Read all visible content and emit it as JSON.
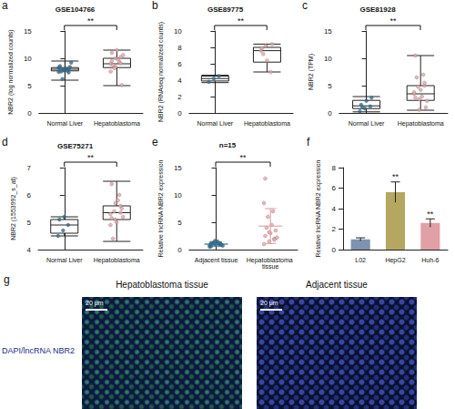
{
  "chart_data": [
    {
      "panel": "a",
      "type": "boxplot",
      "title": "GSE104766",
      "y_label": "NBR2 (log normalized counts)",
      "categories": [
        "Normal Liver",
        "Hepatoblastoma"
      ],
      "colors": [
        "#2e6e8e",
        "#e3a5aa"
      ],
      "box": [
        [
          6.0,
          7.7,
          8.0,
          8.3,
          9.5
        ],
        [
          5.0,
          8.3,
          9.0,
          10.0,
          11.5
        ]
      ],
      "points": [
        [
          7.5,
          7.8,
          8.0,
          8.2,
          7.9,
          8.4,
          7.6,
          8.1,
          9.2,
          6.2,
          7.7,
          8.3,
          8.0,
          7.4,
          8.6
        ],
        [
          9.0,
          8.4,
          10.2,
          9.5,
          11.5,
          5.1,
          8.8,
          9.8,
          10.6,
          8.2,
          9.3,
          7.6,
          10.0,
          9.1,
          11.0
        ]
      ],
      "ylim": [
        0,
        15
      ],
      "yticks": [
        0,
        5,
        10,
        15
      ],
      "annotation": "**",
      "grid": false
    },
    {
      "panel": "b",
      "type": "boxplot",
      "title": "GSE89775",
      "y_label": "NBR2 (RNAseq normalized counts)",
      "categories": [
        "Normal Liver",
        "Hepatoblastoma"
      ],
      "colors": [
        "#2e6e8e",
        "#e3a5aa"
      ],
      "box": [
        [
          3.7,
          3.9,
          4.2,
          4.5,
          4.6
        ],
        [
          5.0,
          6.2,
          7.6,
          8.0,
          8.4
        ]
      ],
      "points": [
        [
          3.8,
          4.2,
          4.5
        ],
        [
          7.6,
          8.2,
          5.0,
          7.9,
          6.4,
          8.4,
          7.2
        ]
      ],
      "ylim": [
        0,
        10
      ],
      "yticks": [
        0,
        2,
        4,
        6,
        8,
        10
      ],
      "annotation": "**",
      "grid": false
    },
    {
      "panel": "c",
      "type": "boxplot",
      "title": "GSE81928",
      "y_label": "NBR2 (TPM)",
      "categories": [
        "Normal Liver",
        "Hepatoblastoma"
      ],
      "colors": [
        "#2e6e8e",
        "#e3a5aa"
      ],
      "box": [
        [
          0.2,
          0.8,
          1.3,
          2.3,
          3.0
        ],
        [
          0.5,
          2.3,
          3.5,
          5.0,
          10.5
        ]
      ],
      "points": [
        [
          0.3,
          0.8,
          1.2,
          1.5,
          2.2,
          2.8,
          1.0
        ],
        [
          3.5,
          2.5,
          5.0,
          10.5,
          4.2,
          1.0,
          6.5,
          3.0,
          2.2,
          4.8,
          7.0,
          3.8,
          0.6,
          5.5,
          2.8
        ]
      ],
      "ylim": [
        0,
        15
      ],
      "yticks": [
        0,
        5,
        10,
        15
      ],
      "annotation": "**",
      "grid": false
    },
    {
      "panel": "d",
      "type": "boxplot",
      "title": "GSE75271",
      "y_label": "NBR2 (1553992_s_at)",
      "categories": [
        "Normal Liver",
        "Hepatoblastoma"
      ],
      "colors": [
        "#2e6e8e",
        "#e3a5aa"
      ],
      "box": [
        [
          4.5,
          4.6,
          4.9,
          5.1,
          5.2
        ],
        [
          4.3,
          5.1,
          5.35,
          5.6,
          6.5
        ]
      ],
      "points": [
        [
          4.5,
          4.7,
          4.9,
          5.1,
          5.2
        ],
        [
          5.3,
          5.1,
          5.6,
          6.4,
          5.0,
          5.5,
          4.4,
          5.8,
          5.2,
          5.4,
          6.0,
          4.9,
          5.7,
          5.35,
          5.15
        ]
      ],
      "ylim": [
        4,
        7
      ],
      "yticks": [
        4,
        5,
        6,
        7
      ],
      "annotation": "**",
      "grid": false
    },
    {
      "panel": "e",
      "type": "scatter",
      "title": "n=15",
      "y_label": "Relative lncRNA NBR2 expression",
      "categories": [
        "Adjacent tissue",
        "Hepatoblastoma tissue"
      ],
      "colors": [
        "#2e6e8e",
        "#e3a5aa"
      ],
      "points": [
        [
          0.8,
          1.0,
          1.2,
          0.6,
          1.4,
          0.9,
          1.1,
          1.5,
          0.7,
          1.3,
          1.0,
          0.5,
          1.6,
          0.9,
          1.2
        ],
        [
          1.0,
          1.5,
          2.0,
          2.5,
          3.0,
          3.5,
          4.0,
          4.5,
          2.2,
          6.0,
          7.0,
          8.5,
          3.2,
          1.8,
          13.0
        ]
      ],
      "mean": [
        1.0,
        4.3
      ],
      "sd": [
        0.35,
        3.2
      ],
      "ylim": [
        0,
        15
      ],
      "yticks": [
        0,
        5,
        10,
        15
      ],
      "annotation": "**",
      "grid": false
    },
    {
      "panel": "f",
      "type": "bar",
      "y_label": "Relative lncRNA NBR2 expression",
      "categories": [
        "L02",
        "HepG2",
        "Huh-6"
      ],
      "values": [
        1.0,
        5.6,
        2.6
      ],
      "errors": [
        0.15,
        1.0,
        0.4
      ],
      "colors": [
        "#7f93b0",
        "#b5a760",
        "#e0a0a5"
      ],
      "significance": [
        null,
        "**",
        "**"
      ],
      "ylim": [
        0,
        8
      ],
      "yticks": [
        0,
        2,
        4,
        6,
        8
      ],
      "grid": false
    }
  ],
  "image_panel": {
    "panel": "g",
    "channel_label": "DAPI/lncRNA NBR2",
    "images": [
      {
        "title": "Hepatoblastoma tissue",
        "scale_bar": "20 μm"
      },
      {
        "title": "Adjacent tissue",
        "scale_bar": "20 μm"
      }
    ]
  }
}
